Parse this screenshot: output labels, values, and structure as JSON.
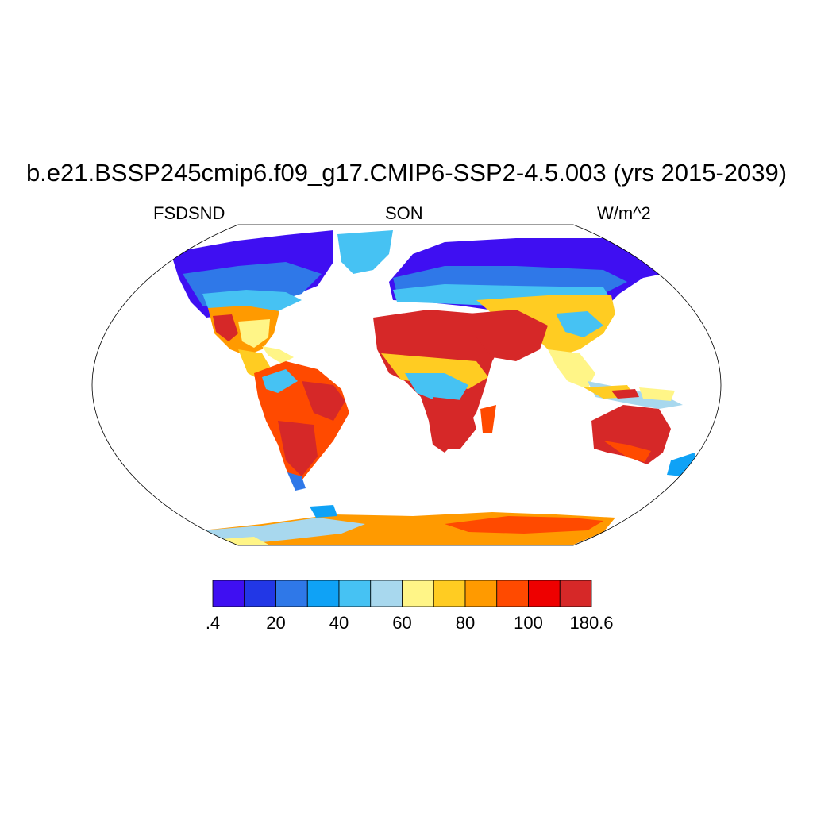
{
  "title": "b.e21.BSSP245cmip6.f09_g17.CMIP6-SSP2-4.5.003 (yrs 2015-2039)",
  "left_string": "FSDSND",
  "center_string": "SON",
  "right_string": "W/m^2",
  "colorbar": {
    "colors": [
      "#3f0ff2",
      "#2237e6",
      "#2f78e8",
      "#0fa2f6",
      "#46c2f3",
      "#a8d8ee",
      "#fff587",
      "#ffcc22",
      "#ff9a00",
      "#ff4a00",
      "#ee0000",
      "#d62828"
    ],
    "labels": [
      {
        "text": ".4",
        "index": 0
      },
      {
        "text": "20",
        "index": 2
      },
      {
        "text": "40",
        "index": 4
      },
      {
        "text": "60",
        "index": 6
      },
      {
        "text": "80",
        "index": 8
      },
      {
        "text": "100",
        "index": 10
      },
      {
        "text": "180.6",
        "index": 12
      }
    ]
  },
  "map": {
    "projection": "robinson",
    "land_bands": [
      {
        "region": "north-polar",
        "level": 0
      },
      {
        "region": "north-high",
        "level": 2
      },
      {
        "region": "north-mid",
        "level": 5
      },
      {
        "region": "north-subtropic",
        "level": 8
      },
      {
        "region": "desert",
        "level": 11
      },
      {
        "region": "tropic",
        "level": 5
      },
      {
        "region": "south-subtropic",
        "level": 10
      },
      {
        "region": "australia",
        "level": 11
      },
      {
        "region": "antarctica",
        "level": 8
      }
    ]
  }
}
